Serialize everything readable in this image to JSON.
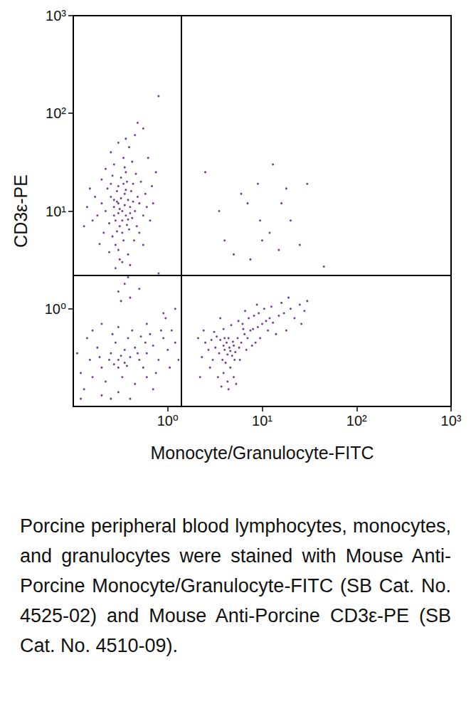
{
  "chart_data": {
    "type": "scatter",
    "x_label": "Monocyte/Granulocyte-FITC",
    "y_label": "CD3ε-PE",
    "caption": "Porcine peripheral blood lymphocytes, monocytes, and granulocytes were stained with Mouse Anti-Porcine Monocyte/Granulocyte-FITC (SB Cat. No. 4525-02) and Mouse Anti-Porcine CD3ε-PE (SB Cat. No. 4510-09).",
    "log": true,
    "grid": false,
    "color": "#5b1f86",
    "marker": "circle",
    "xlim": [
      0.1,
      1000
    ],
    "ylim": [
      0.1,
      1000
    ],
    "xticks": [
      {
        "value": 1,
        "label": "10⁰"
      },
      {
        "value": 10,
        "label": "10¹"
      },
      {
        "value": 100,
        "label": "10²"
      },
      {
        "value": 1000,
        "label": "10³"
      }
    ],
    "yticks": [
      {
        "value": 1,
        "label": "10⁰"
      },
      {
        "value": 10,
        "label": "10¹"
      },
      {
        "value": 100,
        "label": "10²"
      },
      {
        "value": 1000,
        "label": "10³"
      }
    ],
    "quadrant_lines": {
      "x": 1.4,
      "y": 2.2
    },
    "points": [
      [
        0.33,
        10
      ],
      [
        0.3,
        12
      ],
      [
        0.36,
        9
      ],
      [
        0.28,
        8
      ],
      [
        0.4,
        11
      ],
      [
        0.25,
        14
      ],
      [
        0.35,
        15
      ],
      [
        0.31,
        7
      ],
      [
        0.42,
        8.5
      ],
      [
        0.22,
        10
      ],
      [
        0.38,
        13
      ],
      [
        0.27,
        11
      ],
      [
        0.45,
        10
      ],
      [
        0.33,
        6
      ],
      [
        0.3,
        18
      ],
      [
        0.37,
        20
      ],
      [
        0.24,
        7.5
      ],
      [
        0.5,
        12
      ],
      [
        0.2,
        12
      ],
      [
        0.34,
        5
      ],
      [
        0.29,
        16
      ],
      [
        0.41,
        16
      ],
      [
        0.26,
        5.5
      ],
      [
        0.47,
        7
      ],
      [
        0.32,
        22
      ],
      [
        0.39,
        6.5
      ],
      [
        0.23,
        17
      ],
      [
        0.55,
        9
      ],
      [
        0.18,
        9
      ],
      [
        0.36,
        25
      ],
      [
        0.28,
        4.5
      ],
      [
        0.44,
        5
      ],
      [
        0.3,
        9.5
      ],
      [
        0.35,
        11.5
      ],
      [
        0.32,
        13.5
      ],
      [
        0.27,
        9
      ],
      [
        0.4,
        9.5
      ],
      [
        0.33,
        8
      ],
      [
        0.37,
        7.2
      ],
      [
        0.29,
        12.5
      ],
      [
        0.25,
        19
      ],
      [
        0.48,
        14
      ],
      [
        0.21,
        6
      ],
      [
        0.6,
        11
      ],
      [
        0.17,
        14
      ],
      [
        0.35,
        28
      ],
      [
        0.3,
        4
      ],
      [
        0.43,
        19
      ],
      [
        0.26,
        23
      ],
      [
        0.5,
        6
      ],
      [
        0.38,
        3.6
      ],
      [
        0.31,
        3.2
      ],
      [
        0.24,
        3.8
      ],
      [
        0.46,
        24
      ],
      [
        0.2,
        21
      ],
      [
        0.58,
        15
      ],
      [
        0.16,
        8
      ],
      [
        0.65,
        8
      ],
      [
        0.34,
        35
      ],
      [
        0.27,
        30
      ],
      [
        0.42,
        32
      ],
      [
        0.22,
        27
      ],
      [
        0.52,
        20
      ],
      [
        0.39,
        45
      ],
      [
        0.3,
        50
      ],
      [
        0.45,
        60
      ],
      [
        0.55,
        70
      ],
      [
        0.48,
        80
      ],
      [
        0.36,
        55
      ],
      [
        0.25,
        40
      ],
      [
        0.62,
        35
      ],
      [
        0.7,
        12
      ],
      [
        0.14,
        11
      ],
      [
        0.15,
        17
      ],
      [
        0.68,
        18
      ],
      [
        0.33,
        3
      ],
      [
        0.4,
        2.8
      ],
      [
        0.28,
        2.6
      ],
      [
        0.55,
        4.5
      ],
      [
        0.19,
        4.6
      ],
      [
        0.8,
        150
      ],
      [
        0.75,
        25
      ],
      [
        0.13,
        7
      ],
      [
        0.36,
        16.5
      ],
      [
        0.31,
        10.5
      ],
      [
        0.38,
        8.2
      ],
      [
        0.27,
        13
      ],
      [
        0.43,
        12.5
      ],
      [
        0.34,
        19
      ],
      [
        0.29,
        6.2
      ],
      [
        0.35,
        1.8
      ],
      [
        0.3,
        1.5
      ],
      [
        0.4,
        1.3
      ],
      [
        0.38,
        2.1
      ],
      [
        0.32,
        1.2
      ],
      [
        0.5,
        1.6
      ],
      [
        0.8,
        2.3
      ],
      [
        1.2,
        1.0
      ],
      [
        0.9,
        0.9
      ],
      [
        0.3,
        0.3
      ],
      [
        0.25,
        0.35
      ],
      [
        0.35,
        0.28
      ],
      [
        0.4,
        0.32
      ],
      [
        0.2,
        0.25
      ],
      [
        0.15,
        0.3
      ],
      [
        0.12,
        0.22
      ],
      [
        0.45,
        0.4
      ],
      [
        0.5,
        0.3
      ],
      [
        0.6,
        0.35
      ],
      [
        0.7,
        0.42
      ],
      [
        0.28,
        0.45
      ],
      [
        0.33,
        0.2
      ],
      [
        0.22,
        0.18
      ],
      [
        0.18,
        0.4
      ],
      [
        0.38,
        0.5
      ],
      [
        0.55,
        0.25
      ],
      [
        0.8,
        0.3
      ],
      [
        1.0,
        0.38
      ],
      [
        1.2,
        0.45
      ],
      [
        0.9,
        0.5
      ],
      [
        0.65,
        0.55
      ],
      [
        0.42,
        0.6
      ],
      [
        0.26,
        0.55
      ],
      [
        0.14,
        0.5
      ],
      [
        0.11,
        0.35
      ],
      [
        0.13,
        0.15
      ],
      [
        0.2,
        0.13
      ],
      [
        0.3,
        0.14
      ],
      [
        0.45,
        0.17
      ],
      [
        0.6,
        0.2
      ],
      [
        0.75,
        0.22
      ],
      [
        0.35,
        0.38
      ],
      [
        0.3,
        0.25
      ],
      [
        0.24,
        0.3
      ],
      [
        0.48,
        0.35
      ],
      [
        0.16,
        0.2
      ],
      [
        0.58,
        0.45
      ],
      [
        0.85,
        0.6
      ],
      [
        1.1,
        0.6
      ],
      [
        1.05,
        0.25
      ],
      [
        0.7,
        0.15
      ],
      [
        0.4,
        0.12
      ],
      [
        0.25,
        0.12
      ],
      [
        0.12,
        0.12
      ],
      [
        0.32,
        0.33
      ],
      [
        0.37,
        0.26
      ],
      [
        0.27,
        0.27
      ],
      [
        0.52,
        0.52
      ],
      [
        0.19,
        0.32
      ],
      [
        0.95,
        0.8
      ],
      [
        0.6,
        0.7
      ],
      [
        0.3,
        0.65
      ],
      [
        0.2,
        0.7
      ],
      [
        1.3,
        0.3
      ],
      [
        0.16,
        0.6
      ],
      [
        4.5,
        0.4
      ],
      [
        4,
        0.38
      ],
      [
        5,
        0.42
      ],
      [
        3.5,
        0.35
      ],
      [
        4.2,
        0.45
      ],
      [
        5.5,
        0.5
      ],
      [
        3.8,
        0.3
      ],
      [
        4.8,
        0.33
      ],
      [
        3.2,
        0.4
      ],
      [
        6,
        0.45
      ],
      [
        4.4,
        0.5
      ],
      [
        3.6,
        0.48
      ],
      [
        5.2,
        0.36
      ],
      [
        4.1,
        0.28
      ],
      [
        3,
        0.3
      ],
      [
        2.7,
        0.38
      ],
      [
        2.5,
        0.45
      ],
      [
        6.5,
        0.55
      ],
      [
        7,
        0.5
      ],
      [
        7.5,
        0.6
      ],
      [
        8,
        0.62
      ],
      [
        9,
        0.65
      ],
      [
        10,
        0.7
      ],
      [
        11,
        0.75
      ],
      [
        12,
        0.8
      ],
      [
        13,
        0.72
      ],
      [
        15,
        0.85
      ],
      [
        17,
        0.9
      ],
      [
        20,
        1.0
      ],
      [
        22,
        0.8
      ],
      [
        25,
        1.1
      ],
      [
        28,
        0.95
      ],
      [
        30,
        1.2
      ],
      [
        18,
        0.6
      ],
      [
        14,
        0.55
      ],
      [
        9.5,
        0.5
      ],
      [
        8.5,
        0.45
      ],
      [
        6.8,
        0.38
      ],
      [
        5.8,
        0.3
      ],
      [
        4.6,
        0.25
      ],
      [
        3.9,
        0.22
      ],
      [
        3.4,
        0.2
      ],
      [
        4.3,
        0.18
      ],
      [
        5,
        0.2
      ],
      [
        2.8,
        0.25
      ],
      [
        2.3,
        0.32
      ],
      [
        2.1,
        0.5
      ],
      [
        2.4,
        0.6
      ],
      [
        3.1,
        0.58
      ],
      [
        3.9,
        0.62
      ],
      [
        4.7,
        0.68
      ],
      [
        5.6,
        0.75
      ],
      [
        6.2,
        0.7
      ],
      [
        7.2,
        0.8
      ],
      [
        8.2,
        0.85
      ],
      [
        9.2,
        0.9
      ],
      [
        10.5,
        1.0
      ],
      [
        12.5,
        1.05
      ],
      [
        16,
        1.15
      ],
      [
        4.4,
        0.15
      ],
      [
        3.7,
        0.16
      ],
      [
        5.3,
        0.17
      ],
      [
        4.9,
        0.46
      ],
      [
        4.3,
        0.34
      ],
      [
        4.6,
        0.37
      ],
      [
        3.9,
        0.42
      ],
      [
        5.1,
        0.3
      ],
      [
        4.0,
        0.5
      ],
      [
        5.7,
        0.4
      ],
      [
        6.3,
        0.62
      ],
      [
        3.3,
        0.52
      ],
      [
        2.9,
        0.48
      ],
      [
        7.8,
        0.42
      ],
      [
        11.5,
        0.6
      ],
      [
        26,
        0.7
      ],
      [
        19,
        1.3
      ],
      [
        8.8,
        1.1
      ],
      [
        6.6,
        0.95
      ],
      [
        3.6,
        0.8
      ],
      [
        2.2,
        0.2
      ],
      [
        9,
        19
      ],
      [
        13,
        30
      ],
      [
        18,
        17
      ],
      [
        7,
        12
      ],
      [
        4,
        5
      ],
      [
        10,
        5
      ],
      [
        45,
        2.7
      ],
      [
        5,
        3.6
      ],
      [
        7.5,
        3.2
      ],
      [
        12,
        6
      ],
      [
        20,
        8
      ],
      [
        3.5,
        10
      ],
      [
        6,
        15
      ],
      [
        15,
        4
      ],
      [
        9.5,
        8
      ],
      [
        25,
        4.5
      ],
      [
        2.5,
        25
      ],
      [
        16,
        12
      ],
      [
        30,
        19
      ]
    ]
  }
}
